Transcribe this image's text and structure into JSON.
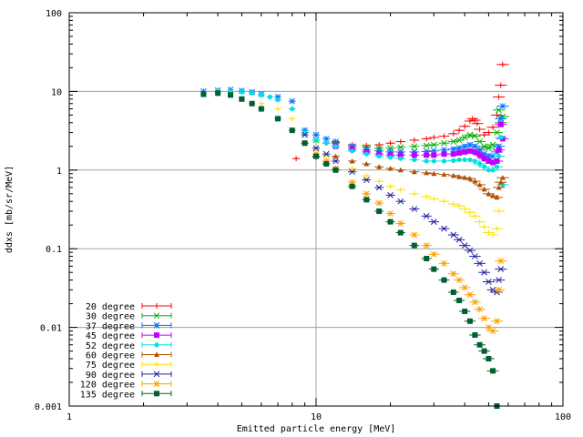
{
  "chart_data": {
    "type": "scatter",
    "title": "",
    "xlabel": "Emitted particle energy [MeV]",
    "ylabel": "ddxs [mb/sr/MeV]",
    "xscale": "log",
    "yscale": "log",
    "xlim": [
      1,
      100
    ],
    "ylim": [
      0.001,
      100
    ],
    "x_ticks": [
      "1",
      "10",
      "100"
    ],
    "y_ticks": [
      "100",
      "10",
      "1",
      "0.1",
      "0.01",
      "0.001"
    ],
    "grid": true,
    "error_bars": true,
    "legend_position": "bottom-left",
    "series": [
      {
        "name": "20 degree",
        "color": "#ff0000",
        "marker": "plus",
        "x": [
          8.3,
          10,
          11,
          12,
          14,
          16,
          18,
          20,
          22,
          25,
          28,
          30,
          33,
          36,
          38,
          40,
          42,
          43,
          44,
          45,
          46,
          48,
          50,
          52,
          54,
          55,
          56,
          57
        ],
        "y": [
          1.4,
          1.45,
          2.2,
          2.25,
          2.1,
          2.05,
          2.1,
          2.2,
          2.3,
          2.4,
          2.5,
          2.6,
          2.7,
          2.9,
          3.2,
          3.6,
          4.2,
          4.5,
          4.3,
          3.9,
          3.3,
          2.8,
          3.0,
          3.5,
          5.0,
          8.5,
          12.0,
          22.0
        ]
      },
      {
        "name": "30 degree",
        "color": "#00b000",
        "marker": "cross",
        "x": [
          10,
          12,
          14,
          16,
          18,
          20,
          22,
          25,
          28,
          30,
          33,
          36,
          38,
          40,
          42,
          44,
          46,
          48,
          50,
          52,
          54,
          55,
          56,
          57
        ],
        "y": [
          2.4,
          2.2,
          2.0,
          1.95,
          1.9,
          1.9,
          1.95,
          2.0,
          2.05,
          2.1,
          2.2,
          2.3,
          2.4,
          2.6,
          2.8,
          2.7,
          2.3,
          2.0,
          1.9,
          2.1,
          3.0,
          5.8,
          4.0,
          4.8
        ]
      },
      {
        "name": "37 degree",
        "color": "#0070ff",
        "marker": "star",
        "x": [
          3.5,
          4,
          4.5,
          5,
          5.5,
          6,
          7,
          8,
          9,
          10,
          11,
          12,
          14,
          16,
          18,
          20,
          22,
          25,
          28,
          30,
          33,
          36,
          38,
          40,
          42,
          44,
          46,
          48,
          50,
          52,
          54,
          55,
          56,
          57
        ],
        "y": [
          10.0,
          10.3,
          10.5,
          10.2,
          9.8,
          9.3,
          8.5,
          7.5,
          3.2,
          2.8,
          2.5,
          2.3,
          2.0,
          1.8,
          1.75,
          1.7,
          1.7,
          1.7,
          1.72,
          1.75,
          1.8,
          1.85,
          1.9,
          2.0,
          2.1,
          2.0,
          1.8,
          1.6,
          1.5,
          1.5,
          1.7,
          2.0,
          4.5,
          6.5
        ]
      },
      {
        "name": "45 degree",
        "color": "#c000ff",
        "marker": "square",
        "x": [
          12,
          14,
          16,
          18,
          20,
          22,
          25,
          28,
          30,
          33,
          36,
          38,
          40,
          42,
          44,
          46,
          48,
          50,
          52,
          54,
          55,
          56,
          57
        ],
        "y": [
          2.0,
          1.85,
          1.7,
          1.6,
          1.55,
          1.55,
          1.55,
          1.55,
          1.55,
          1.6,
          1.6,
          1.65,
          1.7,
          1.75,
          1.7,
          1.55,
          1.4,
          1.3,
          1.25,
          1.3,
          1.8,
          3.8,
          2.5
        ]
      },
      {
        "name": "52 degree",
        "color": "#00e0e0",
        "marker": "circle",
        "x": [
          4,
          4.5,
          5,
          5.5,
          6,
          6.5,
          7,
          8,
          9,
          10,
          11,
          12,
          14,
          16,
          18,
          20,
          22,
          25,
          28,
          30,
          33,
          36,
          38,
          40,
          42,
          44,
          46,
          48,
          50,
          52,
          54,
          55,
          56,
          57
        ],
        "y": [
          10.2,
          10.0,
          9.8,
          9.5,
          9.0,
          8.5,
          7.8,
          6.0,
          3.0,
          2.4,
          2.2,
          2.0,
          1.75,
          1.6,
          1.5,
          1.45,
          1.4,
          1.35,
          1.3,
          1.3,
          1.3,
          1.32,
          1.35,
          1.35,
          1.35,
          1.3,
          1.2,
          1.1,
          1.0,
          1.0,
          1.1,
          1.5,
          2.6,
          0.65
        ]
      },
      {
        "name": "60 degree",
        "color": "#b05000",
        "marker": "triangle",
        "x": [
          12,
          14,
          16,
          18,
          20,
          22,
          25,
          28,
          30,
          33,
          36,
          38,
          40,
          42,
          44,
          46,
          48,
          50,
          52,
          54,
          55,
          56,
          57
        ],
        "y": [
          1.5,
          1.3,
          1.2,
          1.1,
          1.05,
          1.0,
          0.95,
          0.92,
          0.9,
          0.88,
          0.85,
          0.82,
          0.8,
          0.78,
          0.72,
          0.65,
          0.57,
          0.5,
          0.47,
          0.45,
          0.6,
          0.7,
          0.8
        ]
      },
      {
        "name": "75 degree",
        "color": "#ffe000",
        "marker": "plus",
        "x": [
          5,
          6,
          7,
          8,
          9,
          10,
          11,
          12,
          14,
          16,
          18,
          20,
          22,
          25,
          28,
          30,
          33,
          36,
          38,
          40,
          42,
          44,
          46,
          48,
          50,
          52,
          54,
          55
        ],
        "y": [
          8.0,
          7.0,
          6.0,
          4.5,
          2.2,
          1.8,
          1.5,
          1.3,
          1.05,
          0.85,
          0.72,
          0.62,
          0.56,
          0.5,
          0.46,
          0.43,
          0.4,
          0.37,
          0.35,
          0.32,
          0.29,
          0.26,
          0.22,
          0.19,
          0.16,
          0.15,
          0.18,
          0.3
        ]
      },
      {
        "name": "90 degree",
        "color": "#2020a0",
        "marker": "cross",
        "x": [
          9,
          10,
          11,
          12,
          14,
          16,
          18,
          20,
          22,
          25,
          28,
          30,
          33,
          36,
          38,
          40,
          42,
          44,
          46,
          48,
          50,
          52,
          54,
          55,
          56
        ],
        "y": [
          2.8,
          1.9,
          1.6,
          1.3,
          0.95,
          0.75,
          0.6,
          0.48,
          0.4,
          0.32,
          0.26,
          0.22,
          0.18,
          0.15,
          0.13,
          0.11,
          0.095,
          0.08,
          0.065,
          0.05,
          0.038,
          0.03,
          0.028,
          0.04,
          0.055
        ]
      },
      {
        "name": "120 degree",
        "color": "#ffa000",
        "marker": "star",
        "x": [
          9,
          10,
          11,
          12,
          14,
          16,
          18,
          20,
          22,
          25,
          28,
          30,
          33,
          36,
          38,
          40,
          42,
          44,
          46,
          48,
          50,
          52,
          54,
          55,
          56
        ],
        "y": [
          2.2,
          1.6,
          1.3,
          1.05,
          0.7,
          0.5,
          0.38,
          0.28,
          0.21,
          0.15,
          0.11,
          0.085,
          0.065,
          0.048,
          0.04,
          0.032,
          0.026,
          0.021,
          0.017,
          0.013,
          0.01,
          0.009,
          0.012,
          0.03,
          0.07
        ]
      },
      {
        "name": "135 degree",
        "color": "#006030",
        "marker": "square",
        "x": [
          3.5,
          4,
          4.5,
          5,
          5.5,
          6,
          7,
          8,
          9,
          10,
          11,
          12,
          14,
          16,
          18,
          20,
          22,
          25,
          28,
          30,
          33,
          36,
          38,
          40,
          42,
          44,
          46,
          48,
          50,
          52,
          54
        ],
        "y": [
          9.2,
          9.5,
          9.0,
          8.0,
          7.0,
          6.0,
          4.5,
          3.2,
          2.2,
          1.5,
          1.2,
          1.0,
          0.62,
          0.42,
          0.3,
          0.22,
          0.16,
          0.11,
          0.075,
          0.055,
          0.04,
          0.028,
          0.022,
          0.016,
          0.012,
          0.008,
          0.006,
          0.005,
          0.004,
          0.0028,
          0.001
        ]
      }
    ]
  }
}
